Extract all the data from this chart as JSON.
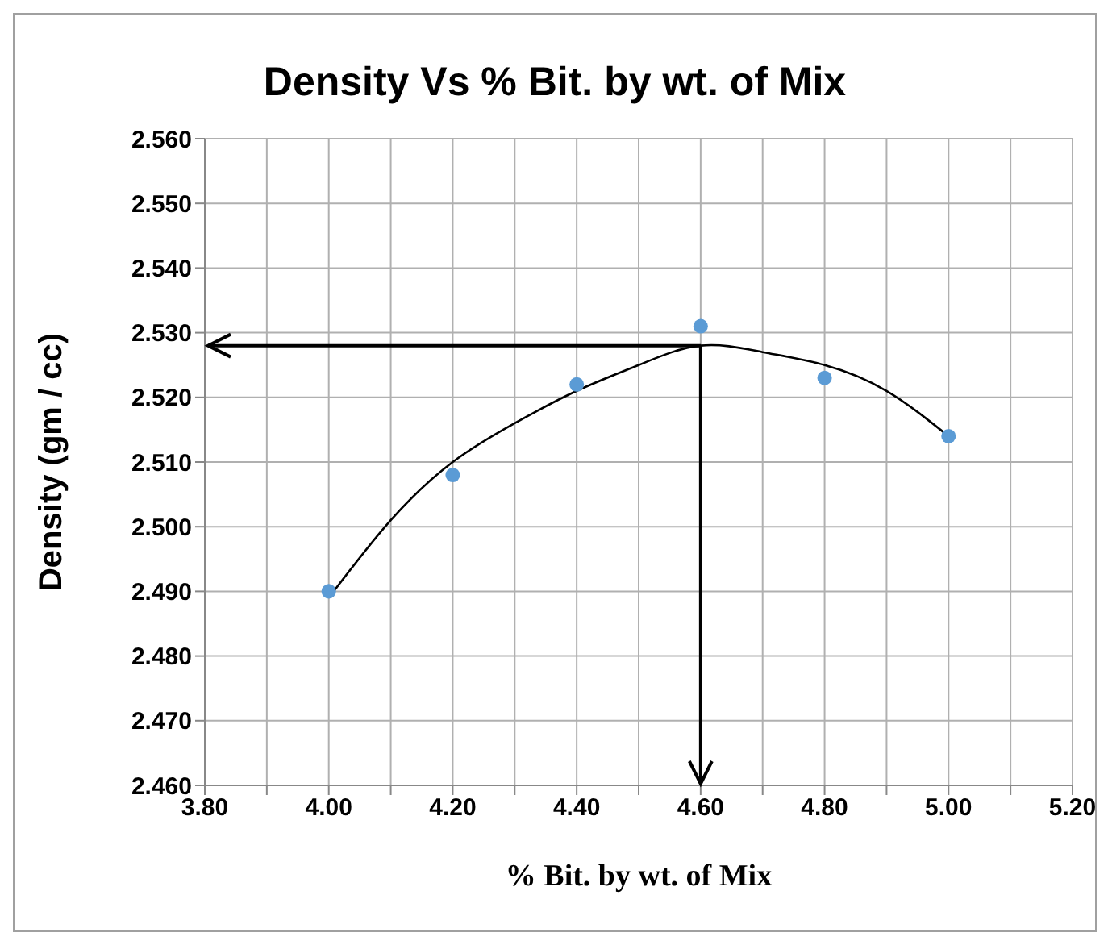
{
  "chart_data": {
    "type": "scatter",
    "title": "Density Vs % Bit. by wt. of Mix",
    "xlabel": "% Bit. by wt. of Mix",
    "ylabel": "Density (gm / cc)",
    "xlim": [
      3.8,
      5.2
    ],
    "xticks": [
      {
        "value": 3.8,
        "label": "3.80"
      },
      {
        "value": 3.9,
        "label": null
      },
      {
        "value": 4.0,
        "label": "4.00"
      },
      {
        "value": 4.1,
        "label": null
      },
      {
        "value": 4.2,
        "label": "4.20"
      },
      {
        "value": 4.3,
        "label": null
      },
      {
        "value": 4.4,
        "label": "4.40"
      },
      {
        "value": 4.5,
        "label": null
      },
      {
        "value": 4.6,
        "label": "4.60"
      },
      {
        "value": 4.7,
        "label": null
      },
      {
        "value": 4.8,
        "label": "4.80"
      },
      {
        "value": 4.9,
        "label": null
      },
      {
        "value": 5.0,
        "label": "5.00"
      },
      {
        "value": 5.1,
        "label": null
      },
      {
        "value": 5.2,
        "label": "5.20"
      }
    ],
    "ylim": [
      2.46,
      2.56
    ],
    "yticks": [
      {
        "value": 2.46,
        "label": "2.460"
      },
      {
        "value": 2.47,
        "label": "2.470"
      },
      {
        "value": 2.48,
        "label": "2.480"
      },
      {
        "value": 2.49,
        "label": "2.490"
      },
      {
        "value": 2.5,
        "label": "2.500"
      },
      {
        "value": 2.51,
        "label": "2.510"
      },
      {
        "value": 2.52,
        "label": "2.520"
      },
      {
        "value": 2.53,
        "label": "2.530"
      },
      {
        "value": 2.54,
        "label": "2.540"
      },
      {
        "value": 2.55,
        "label": "2.550"
      },
      {
        "value": 2.56,
        "label": "2.560"
      }
    ],
    "grid": true,
    "series": [
      {
        "color": "#5b9bd5",
        "marker": "circle",
        "x": [
          4.0,
          4.2,
          4.4,
          4.6,
          4.8,
          5.0
        ],
        "values": [
          2.49,
          2.508,
          2.522,
          2.531,
          2.523,
          2.514
        ]
      },
      {
        "type": "line",
        "color": "#000000",
        "marker": "none",
        "line_style": "solid",
        "x": [
          4.0,
          4.1,
          4.2,
          4.3,
          4.4,
          4.5,
          4.6,
          4.7,
          4.8,
          4.9,
          5.0
        ],
        "values": [
          2.489,
          2.501,
          2.51,
          2.516,
          2.521,
          2.525,
          2.528,
          2.527,
          2.525,
          2.521,
          2.514
        ]
      }
    ],
    "ref_lines": [
      {
        "axis": "x",
        "value": 4.6,
        "color": "#000000"
      },
      {
        "axis": "y",
        "value": 2.528,
        "color": "#000000"
      }
    ]
  }
}
